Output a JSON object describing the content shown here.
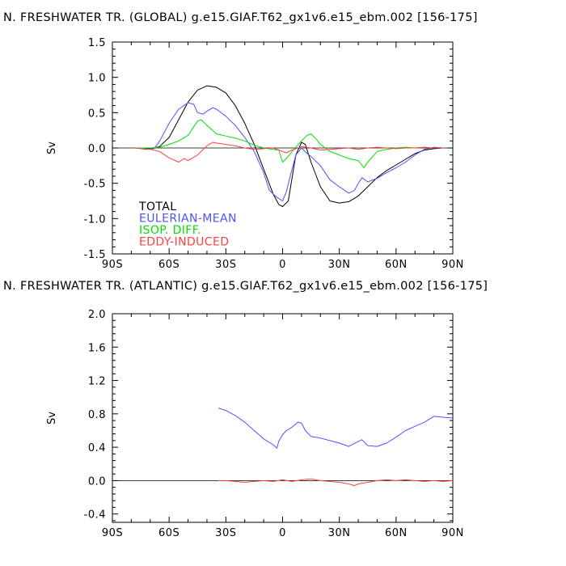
{
  "colors": {
    "total": "#000000",
    "eulerian": "#5050ff",
    "isop": "#00e000",
    "eddy": "#ff4040",
    "axis": "#000000"
  },
  "chart_data": [
    {
      "type": "line",
      "title": "N. FRESHWATER TR. (GLOBAL) g.e15.GIAF.T62_gx1v6.e15_ebm.002 [156-175]",
      "ylabel": "Sv",
      "xlabel": "",
      "xlim": [
        -90,
        90
      ],
      "ylim": [
        -1.5,
        1.5
      ],
      "xticks": [
        -90,
        -60,
        -30,
        0,
        30,
        60,
        90
      ],
      "xtick_labels": [
        "90S",
        "60S",
        "30S",
        "0",
        "30N",
        "60N",
        "90N"
      ],
      "yticks": [
        -1.5,
        -1.0,
        -0.5,
        0.0,
        0.5,
        1.0,
        1.5
      ],
      "ytick_labels": [
        "-1.5",
        "-1.0",
        "-0.5",
        "0.0",
        "0.5",
        "1.0",
        "1.5"
      ],
      "zero_line": true,
      "grid": false,
      "legend_position": "bottom-left",
      "series": [
        {
          "name": "TOTAL",
          "color_key": "total",
          "x": [
            -78,
            -70,
            -65,
            -60,
            -55,
            -50,
            -45,
            -40,
            -35,
            -30,
            -25,
            -20,
            -15,
            -10,
            -5,
            -2,
            0,
            3,
            7,
            10,
            12,
            15,
            20,
            25,
            30,
            35,
            40,
            45,
            50,
            55,
            60,
            65,
            70,
            75,
            80,
            85
          ],
          "y": [
            0.0,
            -0.01,
            0.02,
            0.15,
            0.4,
            0.65,
            0.82,
            0.88,
            0.86,
            0.78,
            0.6,
            0.35,
            0.05,
            -0.3,
            -0.65,
            -0.8,
            -0.83,
            -0.75,
            -0.1,
            0.08,
            0.05,
            -0.2,
            -0.55,
            -0.75,
            -0.78,
            -0.76,
            -0.68,
            -0.55,
            -0.42,
            -0.32,
            -0.24,
            -0.16,
            -0.08,
            -0.03,
            -0.01,
            0.0
          ]
        },
        {
          "name": "EULERIAN-MEAN",
          "color_key": "eulerian",
          "x": [
            -78,
            -72,
            -68,
            -65,
            -60,
            -55,
            -50,
            -47,
            -45,
            -42,
            -40,
            -37,
            -35,
            -30,
            -25,
            -20,
            -15,
            -10,
            -7,
            -3,
            0,
            2,
            4,
            7,
            10,
            13,
            15,
            20,
            25,
            30,
            35,
            38,
            40,
            42,
            45,
            50,
            55,
            60,
            65,
            70,
            75,
            80,
            85
          ],
          "y": [
            0.0,
            -0.02,
            -0.01,
            0.1,
            0.35,
            0.55,
            0.64,
            0.62,
            0.5,
            0.48,
            0.52,
            0.57,
            0.55,
            0.45,
            0.32,
            0.15,
            -0.05,
            -0.35,
            -0.6,
            -0.7,
            -0.75,
            -0.62,
            -0.4,
            -0.1,
            0.0,
            -0.08,
            -0.12,
            -0.25,
            -0.45,
            -0.55,
            -0.64,
            -0.6,
            -0.5,
            -0.42,
            -0.48,
            -0.43,
            -0.35,
            -0.28,
            -0.2,
            -0.1,
            -0.02,
            0.01,
            0.0
          ]
        },
        {
          "name": "ISOP. DIFF.",
          "color_key": "isop",
          "x": [
            -78,
            -70,
            -65,
            -60,
            -55,
            -50,
            -47,
            -45,
            -43,
            -40,
            -37,
            -35,
            -30,
            -25,
            -20,
            -15,
            -10,
            -5,
            -2,
            0,
            2,
            5,
            10,
            13,
            15,
            18,
            20,
            25,
            30,
            35,
            40,
            43,
            45,
            50,
            55,
            60,
            65,
            70,
            75,
            80,
            85
          ],
          "y": [
            0.0,
            0.0,
            0.01,
            0.05,
            0.1,
            0.18,
            0.3,
            0.38,
            0.4,
            0.32,
            0.25,
            0.2,
            0.17,
            0.14,
            0.1,
            0.04,
            0.0,
            -0.02,
            -0.03,
            -0.2,
            -0.15,
            -0.05,
            0.1,
            0.18,
            0.2,
            0.12,
            0.05,
            -0.05,
            -0.1,
            -0.15,
            -0.18,
            -0.28,
            -0.2,
            -0.05,
            -0.02,
            0.0,
            0.01,
            0.0,
            0.01,
            0.0,
            0.0
          ]
        },
        {
          "name": "EDDY-INDUCED",
          "color_key": "eddy",
          "x": [
            -78,
            -70,
            -65,
            -60,
            -55,
            -52,
            -50,
            -45,
            -40,
            -37,
            -35,
            -30,
            -25,
            -20,
            -15,
            -10,
            -5,
            0,
            2,
            5,
            10,
            15,
            20,
            25,
            30,
            35,
            40,
            45,
            50,
            55,
            60,
            65,
            70,
            75,
            80,
            85
          ],
          "y": [
            0.0,
            -0.02,
            -0.05,
            -0.14,
            -0.2,
            -0.15,
            -0.18,
            -0.1,
            0.03,
            0.08,
            0.07,
            0.05,
            0.03,
            0.0,
            -0.02,
            -0.01,
            0.0,
            -0.05,
            -0.07,
            -0.03,
            0.02,
            0.0,
            -0.03,
            -0.02,
            -0.01,
            0.0,
            -0.02,
            0.0,
            0.01,
            0.0,
            -0.01,
            0.0,
            0.0,
            0.01,
            0.0,
            0.0
          ]
        }
      ]
    },
    {
      "type": "line",
      "title": "N. FRESHWATER TR. (ATLANTIC) g.e15.GIAF.T62_gx1v6.e15_ebm.002 [156-175]",
      "ylabel": "Sv",
      "xlabel": "",
      "xlim": [
        -90,
        90
      ],
      "ylim": [
        -0.5,
        2.0
      ],
      "xticks": [
        -90,
        -60,
        -30,
        0,
        30,
        60,
        90
      ],
      "xtick_labels": [
        "90S",
        "60S",
        "30S",
        "0",
        "30N",
        "60N",
        "90N"
      ],
      "yticks": [
        -0.4,
        0.0,
        0.4,
        0.8,
        1.2,
        1.6,
        2.0
      ],
      "ytick_labels": [
        "-0.4",
        "0.0",
        "0.4",
        "0.8",
        "1.2",
        "1.6",
        "2.0"
      ],
      "zero_line": true,
      "grid": false,
      "series": [
        {
          "color_key": "eulerian",
          "x": [
            -34,
            -30,
            -25,
            -20,
            -15,
            -10,
            -5,
            -3,
            -2,
            0,
            2,
            5,
            8,
            10,
            12,
            15,
            20,
            25,
            30,
            35,
            40,
            42,
            45,
            50,
            55,
            60,
            65,
            70,
            75,
            80,
            85,
            90
          ],
          "y": [
            0.87,
            0.84,
            0.78,
            0.7,
            0.6,
            0.5,
            0.43,
            0.39,
            0.47,
            0.55,
            0.6,
            0.64,
            0.7,
            0.69,
            0.6,
            0.53,
            0.51,
            0.48,
            0.45,
            0.41,
            0.47,
            0.49,
            0.42,
            0.41,
            0.45,
            0.52,
            0.6,
            0.65,
            0.7,
            0.77,
            0.76,
            0.75
          ]
        },
        {
          "color_key": "eddy",
          "x": [
            -34,
            -30,
            -25,
            -20,
            -15,
            -10,
            -5,
            0,
            5,
            10,
            15,
            20,
            25,
            30,
            35,
            38,
            40,
            45,
            50,
            55,
            60,
            65,
            70,
            75,
            80,
            85,
            90
          ],
          "y": [
            0.0,
            0.0,
            -0.01,
            -0.02,
            -0.01,
            0.0,
            -0.01,
            0.01,
            -0.01,
            0.01,
            0.02,
            0.0,
            -0.01,
            -0.02,
            -0.04,
            -0.06,
            -0.04,
            -0.02,
            0.0,
            0.01,
            0.0,
            0.01,
            0.0,
            -0.01,
            0.0,
            -0.01,
            0.0
          ]
        }
      ]
    }
  ]
}
